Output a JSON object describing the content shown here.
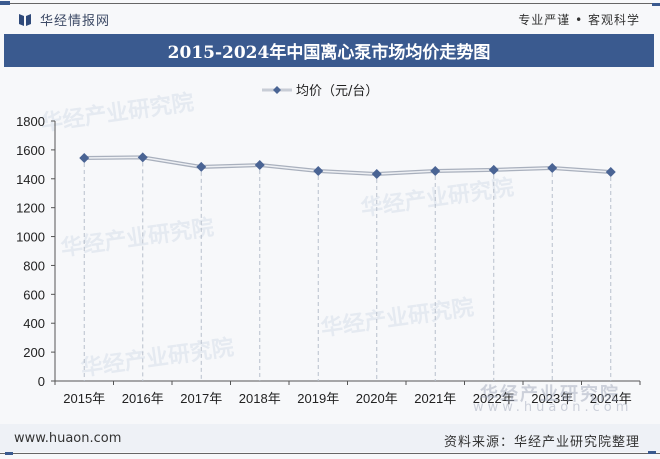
{
  "header": {
    "brand_name": "华经情报网",
    "slogan": "专业严谨 • 客观科学",
    "title": "2015-2024年中国离心泵市场均价走势图"
  },
  "legend": {
    "label": "均价（元/台）",
    "line_color": "#c8cdd6",
    "marker_color": "#4a6494"
  },
  "footer": {
    "url": "www.huaon.com",
    "source": "资料来源：华经产业研究院整理"
  },
  "watermarks": {
    "text": "华经产业研究院",
    "url": "www.huaon.com"
  },
  "colors": {
    "title_bar": "#3a5a8f",
    "marker": "#4a6494",
    "line": "#c8cdd6"
  },
  "chart_data": {
    "type": "line",
    "title": "2015-2024年中国离心泵市场均价走势图",
    "xlabel": "",
    "ylabel": "",
    "categories": [
      "2015年",
      "2016年",
      "2017年",
      "2018年",
      "2019年",
      "2020年",
      "2021年",
      "2022年",
      "2023年",
      "2024年"
    ],
    "series": [
      {
        "name": "均价（元/台）",
        "values": [
          1544,
          1548,
          1482,
          1495,
          1454,
          1433,
          1454,
          1462,
          1475,
          1447
        ]
      }
    ],
    "ylim": [
      0,
      1800
    ],
    "yticks": [
      0,
      200,
      400,
      600,
      800,
      1000,
      1200,
      1400,
      1600,
      1800
    ],
    "grid": "vertical dashed drop lines",
    "legend_position": "top"
  }
}
